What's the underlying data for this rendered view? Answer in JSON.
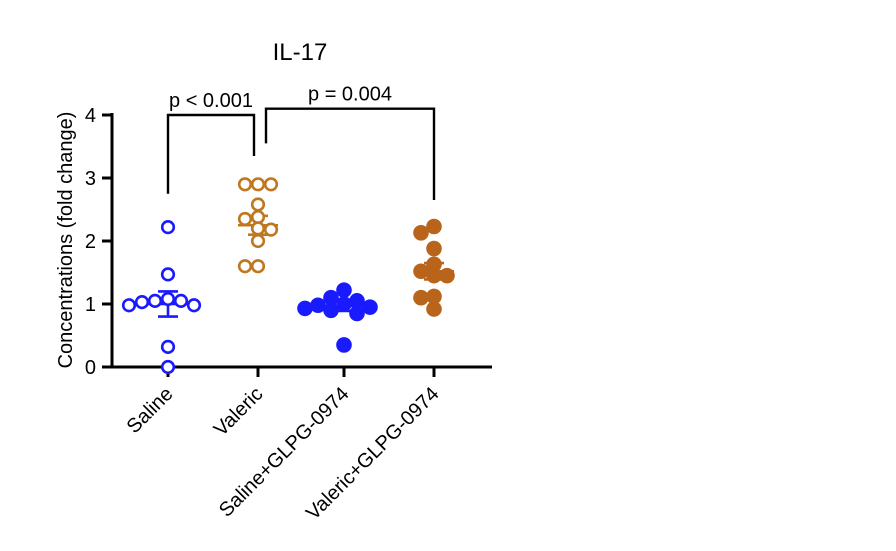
{
  "chart_data": {
    "type": "scatter",
    "title": "IL-17",
    "xlabel": "",
    "ylabel": "Concentrations (fold change)",
    "ylim": [
      0,
      4
    ],
    "yticks": [
      "0",
      "1",
      "2",
      "3",
      "4"
    ],
    "grid": false,
    "legend": "none",
    "groups": [
      {
        "name": "Saline",
        "marker": "open",
        "color": "#1a1aff",
        "mean": 1.0,
        "sem": 0.2,
        "values": [
          2.22,
          1.47,
          1.08,
          1.05,
          1.03,
          1.05,
          0.98,
          0.98,
          0.32,
          0.0
        ]
      },
      {
        "name": "Valeric",
        "marker": "open",
        "color": "#c07820",
        "mean": 2.25,
        "sem": 0.15,
        "values": [
          2.9,
          2.9,
          2.9,
          2.58,
          2.38,
          2.35,
          2.18,
          2.2,
          2.0,
          1.6,
          1.6
        ]
      },
      {
        "name": "Saline+GLPG-0974",
        "marker": "filled",
        "color": "#1a1aff",
        "mean": 0.97,
        "sem": 0.08,
        "values": [
          1.22,
          1.1,
          1.05,
          1.0,
          0.98,
          0.95,
          0.93,
          0.9,
          0.85,
          0.35
        ]
      },
      {
        "name": "Valeric+GLPG-0974",
        "marker": "filled",
        "color": "#b8641a",
        "mean": 1.52,
        "sem": 0.13,
        "values": [
          2.23,
          2.13,
          1.88,
          1.63,
          1.52,
          1.45,
          1.45,
          1.12,
          1.1,
          0.92
        ]
      }
    ],
    "annotations": [
      {
        "text": "p < 0.001",
        "from": 0,
        "to": 1,
        "from_y": 2.75,
        "to_y": 3.35,
        "bar_y": 4.0
      },
      {
        "text": "p = 0.004",
        "from": 1,
        "to": 3,
        "from_y": 3.55,
        "to_y": 2.65,
        "bar_y": 4.1
      }
    ]
  }
}
